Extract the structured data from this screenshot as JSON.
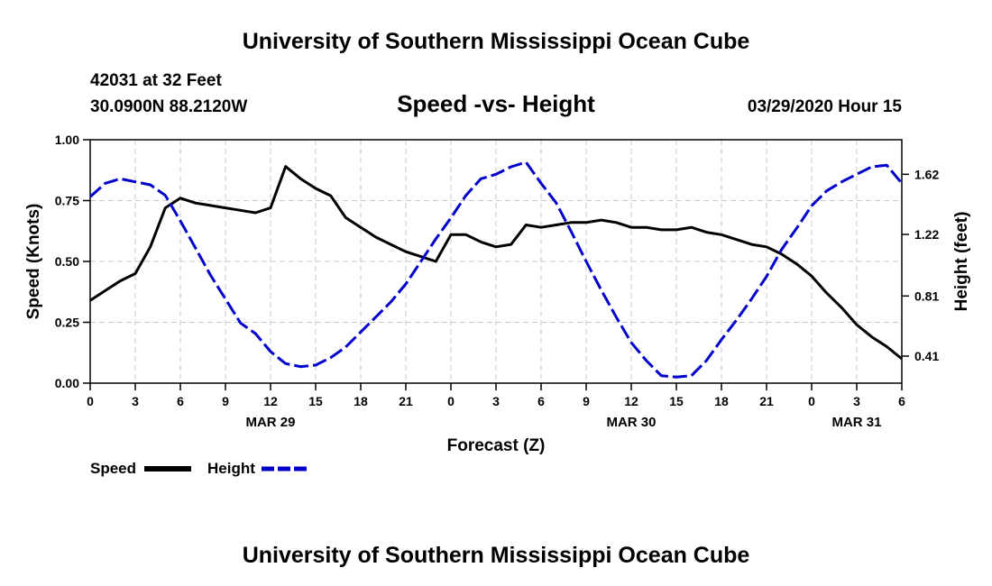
{
  "header": {
    "title_top": "University of Southern Mississippi Ocean Cube",
    "station": "42031 at 32 Feet",
    "location": "30.0900N 88.2120W",
    "chart_title": "Speed -vs- Height",
    "datetime": "03/29/2020 Hour 15"
  },
  "footer": {
    "title_bottom": "University of Southern Mississippi Ocean Cube"
  },
  "legend": {
    "speed_label": "Speed",
    "height_label": "Height"
  },
  "chart_data": {
    "type": "line",
    "title": "Speed -vs- Height",
    "xlabel": "Forecast (Z)",
    "ylabel": "Speed (Knots)",
    "y2label": "Height (feet)",
    "x_range": [
      0,
      54
    ],
    "ylim": [
      0,
      1
    ],
    "y2lim": [
      0.23,
      1.85
    ],
    "x_ticks": [
      0,
      3,
      6,
      9,
      12,
      15,
      18,
      21,
      24,
      27,
      30,
      33,
      36,
      39,
      42,
      45,
      48,
      51,
      54
    ],
    "x_tick_labels": [
      "0",
      "3",
      "6",
      "9",
      "12",
      "15",
      "18",
      "21",
      "0",
      "3",
      "6",
      "9",
      "12",
      "15",
      "18",
      "21",
      "0",
      "3",
      "6"
    ],
    "y_ticks": [
      0,
      0.25,
      0.5,
      0.75,
      1
    ],
    "y_tick_labels": [
      "0.00",
      "0.25",
      "0.50",
      "0.75",
      "1.00"
    ],
    "y2_ticks": [
      0.41,
      0.81,
      1.22,
      1.62
    ],
    "y2_tick_labels": [
      "0.41",
      "0.81",
      "1.22",
      "1.62"
    ],
    "date_labels": [
      {
        "x": 12,
        "label": "MAR 29"
      },
      {
        "x": 36,
        "label": "MAR 30"
      },
      {
        "x": 51,
        "label": "MAR 31"
      }
    ],
    "grid": true,
    "legend_position": "bottom-left",
    "series": [
      {
        "name": "Speed",
        "axis": "left",
        "color": "#000000",
        "style": "solid",
        "x": [
          0,
          1,
          2,
          3,
          4,
          5,
          6,
          7,
          8,
          9,
          10,
          11,
          12,
          13,
          14,
          15,
          16,
          17,
          18,
          19,
          20,
          21,
          22,
          23,
          24,
          25,
          26,
          27,
          28,
          29,
          30,
          31,
          32,
          33,
          34,
          35,
          36,
          37,
          38,
          39,
          40,
          41,
          42,
          43,
          44,
          45,
          46,
          47,
          48,
          49,
          50,
          51,
          52,
          53,
          54
        ],
        "values": [
          0.34,
          0.38,
          0.42,
          0.45,
          0.56,
          0.72,
          0.76,
          0.74,
          0.73,
          0.72,
          0.71,
          0.7,
          0.72,
          0.89,
          0.84,
          0.8,
          0.77,
          0.68,
          0.64,
          0.6,
          0.57,
          0.54,
          0.52,
          0.5,
          0.61,
          0.61,
          0.58,
          0.56,
          0.57,
          0.65,
          0.64,
          0.65,
          0.66,
          0.66,
          0.67,
          0.66,
          0.64,
          0.64,
          0.63,
          0.63,
          0.64,
          0.62,
          0.61,
          0.59,
          0.57,
          0.56,
          0.53,
          0.49,
          0.44,
          0.37,
          0.31,
          0.24,
          0.19,
          0.15,
          0.1
        ]
      },
      {
        "name": "Height",
        "axis": "right",
        "color": "#0000cc",
        "style": "dashed",
        "x": [
          0,
          1,
          2,
          3,
          4,
          5,
          6,
          7,
          8,
          9,
          10,
          11,
          12,
          13,
          14,
          15,
          16,
          17,
          18,
          19,
          20,
          21,
          22,
          23,
          24,
          25,
          26,
          27,
          28,
          29,
          30,
          31,
          32,
          33,
          34,
          35,
          36,
          37,
          38,
          39,
          40,
          41,
          42,
          43,
          44,
          45,
          46,
          47,
          48,
          49,
          50,
          51,
          52,
          53,
          54
        ],
        "values": [
          1.47,
          1.56,
          1.59,
          1.57,
          1.55,
          1.48,
          1.31,
          1.13,
          0.95,
          0.79,
          0.63,
          0.56,
          0.44,
          0.36,
          0.34,
          0.35,
          0.4,
          0.47,
          0.57,
          0.67,
          0.77,
          0.89,
          1.04,
          1.19,
          1.33,
          1.48,
          1.59,
          1.62,
          1.67,
          1.7,
          1.56,
          1.43,
          1.24,
          1.04,
          0.85,
          0.67,
          0.5,
          0.38,
          0.28,
          0.27,
          0.28,
          0.38,
          0.52,
          0.65,
          0.79,
          0.94,
          1.12,
          1.26,
          1.41,
          1.51,
          1.57,
          1.62,
          1.67,
          1.68,
          1.56
        ]
      }
    ]
  }
}
